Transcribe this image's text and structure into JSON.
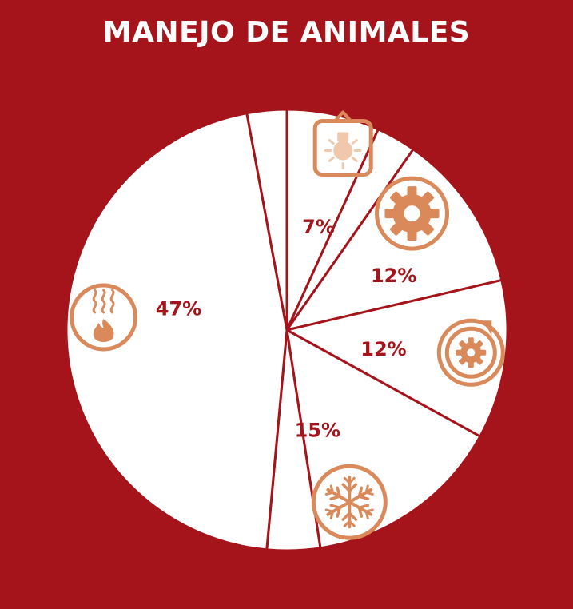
{
  "title": "MANEJO DE ANIMALES",
  "colors": {
    "background": "#a6141b",
    "slice_fill": "#ffffff",
    "slice_stroke": "#a6141b",
    "label": "#a6141b",
    "icon": "#d9895a",
    "icon_light": "#f0c9ad"
  },
  "chart_data": {
    "type": "pie",
    "values": [
      7,
      3,
      12,
      12,
      15,
      4,
      47,
      3
    ],
    "labels": [
      "7%",
      "",
      "12%",
      "12%",
      "15%",
      "",
      "47%",
      ""
    ],
    "icons": [
      "lightbulb-icon",
      "",
      "gear-icon",
      "fan-icon",
      "snowflake-icon",
      "",
      "heat-flame-icon",
      ""
    ],
    "start_angle_deg": 0,
    "direction": "clockwise",
    "legend": "none"
  }
}
